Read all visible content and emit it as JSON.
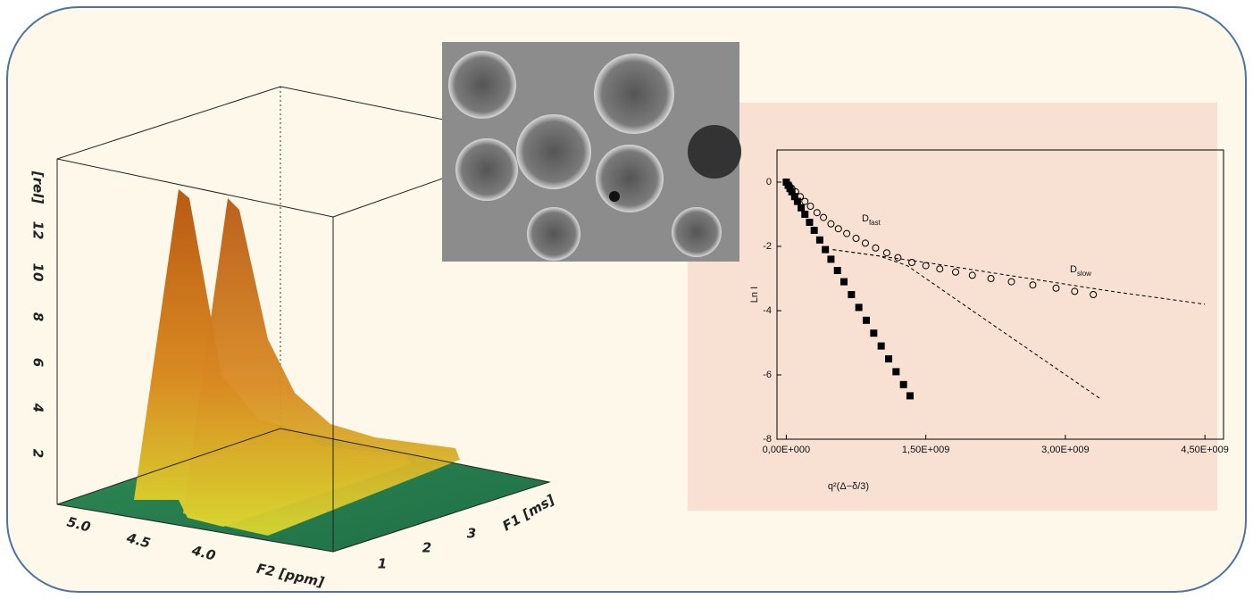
{
  "surface_plot": {
    "z_label": "[rel]",
    "z_ticks": [
      "12",
      "10",
      "8",
      "6",
      "4",
      "2"
    ],
    "x_label": "F2 [ppm]",
    "x_ticks": [
      "5.0",
      "4.5",
      "4.0"
    ],
    "y_label": "F1 [ms]",
    "y_ticks": [
      "1",
      "2",
      "3"
    ]
  },
  "chart_data": {
    "type": "scatter",
    "x_label": "q²(Δ−δ/3)",
    "y_label": "Ln I",
    "xlim": [
      -100000000,
      4700000000
    ],
    "ylim": [
      -8,
      1
    ],
    "xticks": [
      {
        "value": 0,
        "label": "0,00E+000"
      },
      {
        "value": 1500000000,
        "label": "1,50E+009"
      },
      {
        "value": 3000000000,
        "label": "3,00E+009"
      },
      {
        "value": 4500000000,
        "label": "4,50E+009"
      }
    ],
    "yticks": [
      0,
      -2,
      -4,
      -6,
      -8
    ],
    "annotations": [
      {
        "text": "D",
        "sub": "fast"
      },
      {
        "text": "D",
        "sub": "slow"
      }
    ],
    "series": [
      {
        "marker": "square",
        "color": "#000000",
        "x": [
          0,
          20000000,
          40000000,
          60000000,
          90000000,
          120000000,
          160000000,
          200000000,
          250000000,
          300000000,
          360000000,
          420000000,
          480000000,
          550000000,
          620000000,
          700000000,
          780000000,
          860000000,
          940000000,
          1020000000,
          1100000000,
          1180000000,
          1260000000,
          1330000000
        ],
        "values": [
          0,
          -0.1,
          -0.2,
          -0.3,
          -0.45,
          -0.6,
          -0.8,
          -1.0,
          -1.25,
          -1.5,
          -1.8,
          -2.1,
          -2.4,
          -2.75,
          -3.1,
          -3.5,
          -3.9,
          -4.3,
          -4.7,
          -5.1,
          -5.5,
          -5.9,
          -6.3,
          -6.65
        ]
      },
      {
        "marker": "circle",
        "color": "#000000",
        "x": [
          0,
          30000000,
          60000000,
          100000000,
          150000000,
          200000000,
          260000000,
          330000000,
          400000000,
          480000000,
          560000000,
          650000000,
          750000000,
          850000000,
          960000000,
          1080000000,
          1200000000,
          1350000000,
          1500000000,
          1650000000,
          1820000000,
          2000000000,
          2200000000,
          2420000000,
          2650000000,
          2900000000,
          3100000000,
          3300000000
        ],
        "values": [
          0,
          -0.1,
          -0.2,
          -0.3,
          -0.45,
          -0.6,
          -0.75,
          -0.95,
          -1.1,
          -1.3,
          -1.45,
          -1.6,
          -1.75,
          -1.9,
          -2.05,
          -2.2,
          -2.35,
          -2.5,
          -2.6,
          -2.7,
          -2.8,
          -2.9,
          -3.0,
          -3.1,
          -3.2,
          -3.3,
          -3.4,
          -3.5
        ]
      },
      {
        "marker": "dashed-line",
        "color": "#000000",
        "x": [
          500000000,
          1500000000,
          2500000000,
          3500000000,
          4500000000
        ],
        "values": [
          -2.1,
          -2.5,
          -2.95,
          -3.4,
          -3.8
        ]
      },
      {
        "marker": "dashed-line",
        "color": "#000000",
        "x": [
          500000000,
          1000000000,
          1300000000,
          2000000000,
          3380000000
        ],
        "values": [
          -2.1,
          -2.3,
          -2.6,
          -4.0,
          -6.75
        ]
      }
    ]
  }
}
